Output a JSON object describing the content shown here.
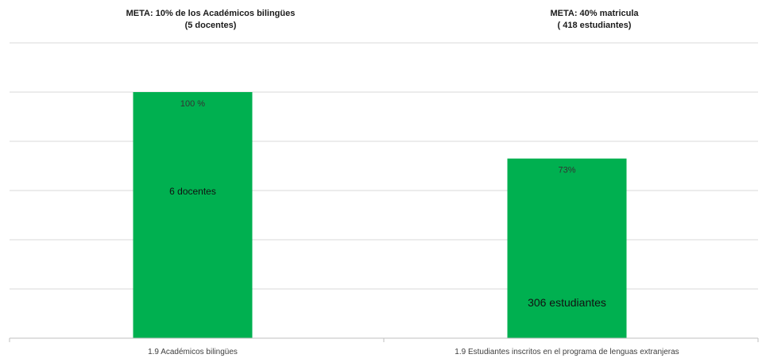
{
  "chart_data": {
    "type": "bar",
    "categories": [
      "1.9 Académicos bilingües",
      "1.9 Estudiantes inscritos en el programa de lenguas extranjeras"
    ],
    "values": [
      100,
      73
    ],
    "ylim": [
      0,
      120
    ],
    "grid": true,
    "bar_color": "#00b050",
    "data_labels": [
      {
        "top": "100 %",
        "inner": "6 docentes"
      },
      {
        "top": "73%",
        "inner": "306 estudiantes"
      }
    ],
    "annotations": [
      {
        "line1": "META: 10% de los Académicos bilingües",
        "line2": "(5 docentes)"
      },
      {
        "line1": "META: 40% matricula",
        "line2": "( 418 estudiantes)"
      }
    ]
  }
}
